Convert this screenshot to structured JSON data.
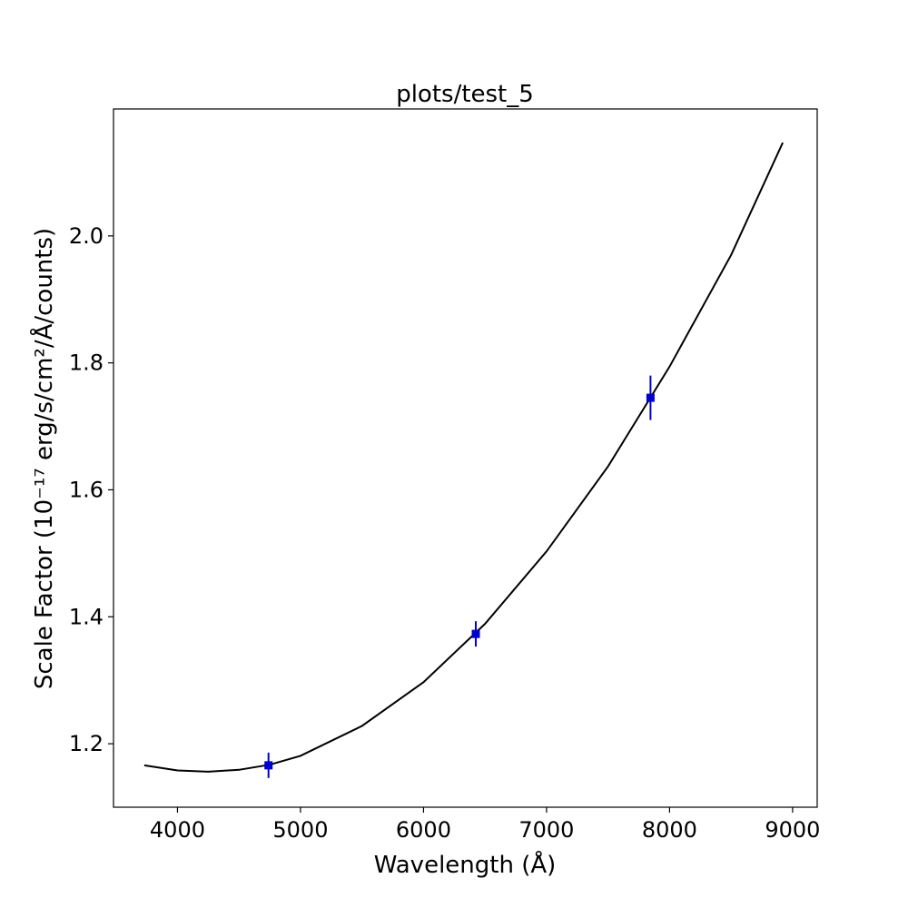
{
  "chart_data": {
    "type": "scatter",
    "title": "plots/test_5",
    "xlabel": "Wavelength (Å)",
    "ylabel": "Scale Factor (10⁻¹⁷ erg/s/cm²/Å/counts)",
    "xlim": [
      3480,
      9200
    ],
    "ylim": [
      1.1,
      2.2
    ],
    "xticks": [
      4000,
      5000,
      6000,
      7000,
      8000,
      9000
    ],
    "yticks": [
      1.2,
      1.4,
      1.6,
      1.8,
      2.0
    ],
    "grid": false,
    "points": {
      "color": "#0000cc",
      "x": [
        4740,
        6425,
        7845
      ],
      "y": [
        1.166,
        1.373,
        1.745
      ],
      "yerr": [
        0.02,
        0.02,
        0.035
      ]
    },
    "fit_curve": {
      "color": "#000000",
      "x": [
        3730,
        4000,
        4250,
        4500,
        4750,
        5000,
        5500,
        6000,
        6500,
        7000,
        7500,
        8000,
        8500,
        8920
      ],
      "y": [
        1.166,
        1.158,
        1.156,
        1.159,
        1.167,
        1.181,
        1.228,
        1.297,
        1.389,
        1.503,
        1.637,
        1.794,
        1.97,
        2.147
      ]
    }
  }
}
